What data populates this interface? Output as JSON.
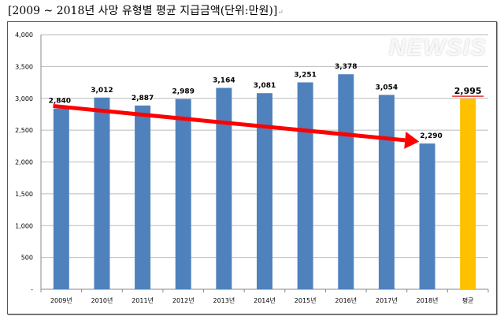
{
  "title": "[2009 ~ 2018년 사망 유형별 평균 지급금액(단위:만원)]",
  "title_mark": "↵",
  "watermark": "NEWSIS",
  "chart_data": {
    "type": "bar",
    "title": "[2009 ~ 2018년 사망 유형별 평균 지급금액(단위:만원)]",
    "categories": [
      "2009년",
      "2010년",
      "2011년",
      "2012년",
      "2013년",
      "2014년",
      "2015년",
      "2016년",
      "2017년",
      "2018년",
      "평균"
    ],
    "values": [
      2840,
      3012,
      2887,
      2989,
      3164,
      3081,
      3251,
      3378,
      3054,
      2290,
      2995
    ],
    "value_labels": [
      "2,840",
      "3,012",
      "2,887",
      "2,989",
      "3,164",
      "3,081",
      "3,251",
      "3,378",
      "3,054",
      "2,290",
      "2,995"
    ],
    "yticks": [
      "-",
      "500",
      "1,000",
      "1,500",
      "2,000",
      "2,500",
      "3,000",
      "3,500",
      "4,000"
    ],
    "ylim": [
      0,
      4000
    ],
    "grid": true,
    "colors": {
      "bar": "#4F81BD",
      "average_bar": "#FFC000",
      "trend_arrow": "#FF0000",
      "average_underline": "#E03030"
    },
    "annotation": "red downward trend arrow from 2009 to 2018"
  }
}
